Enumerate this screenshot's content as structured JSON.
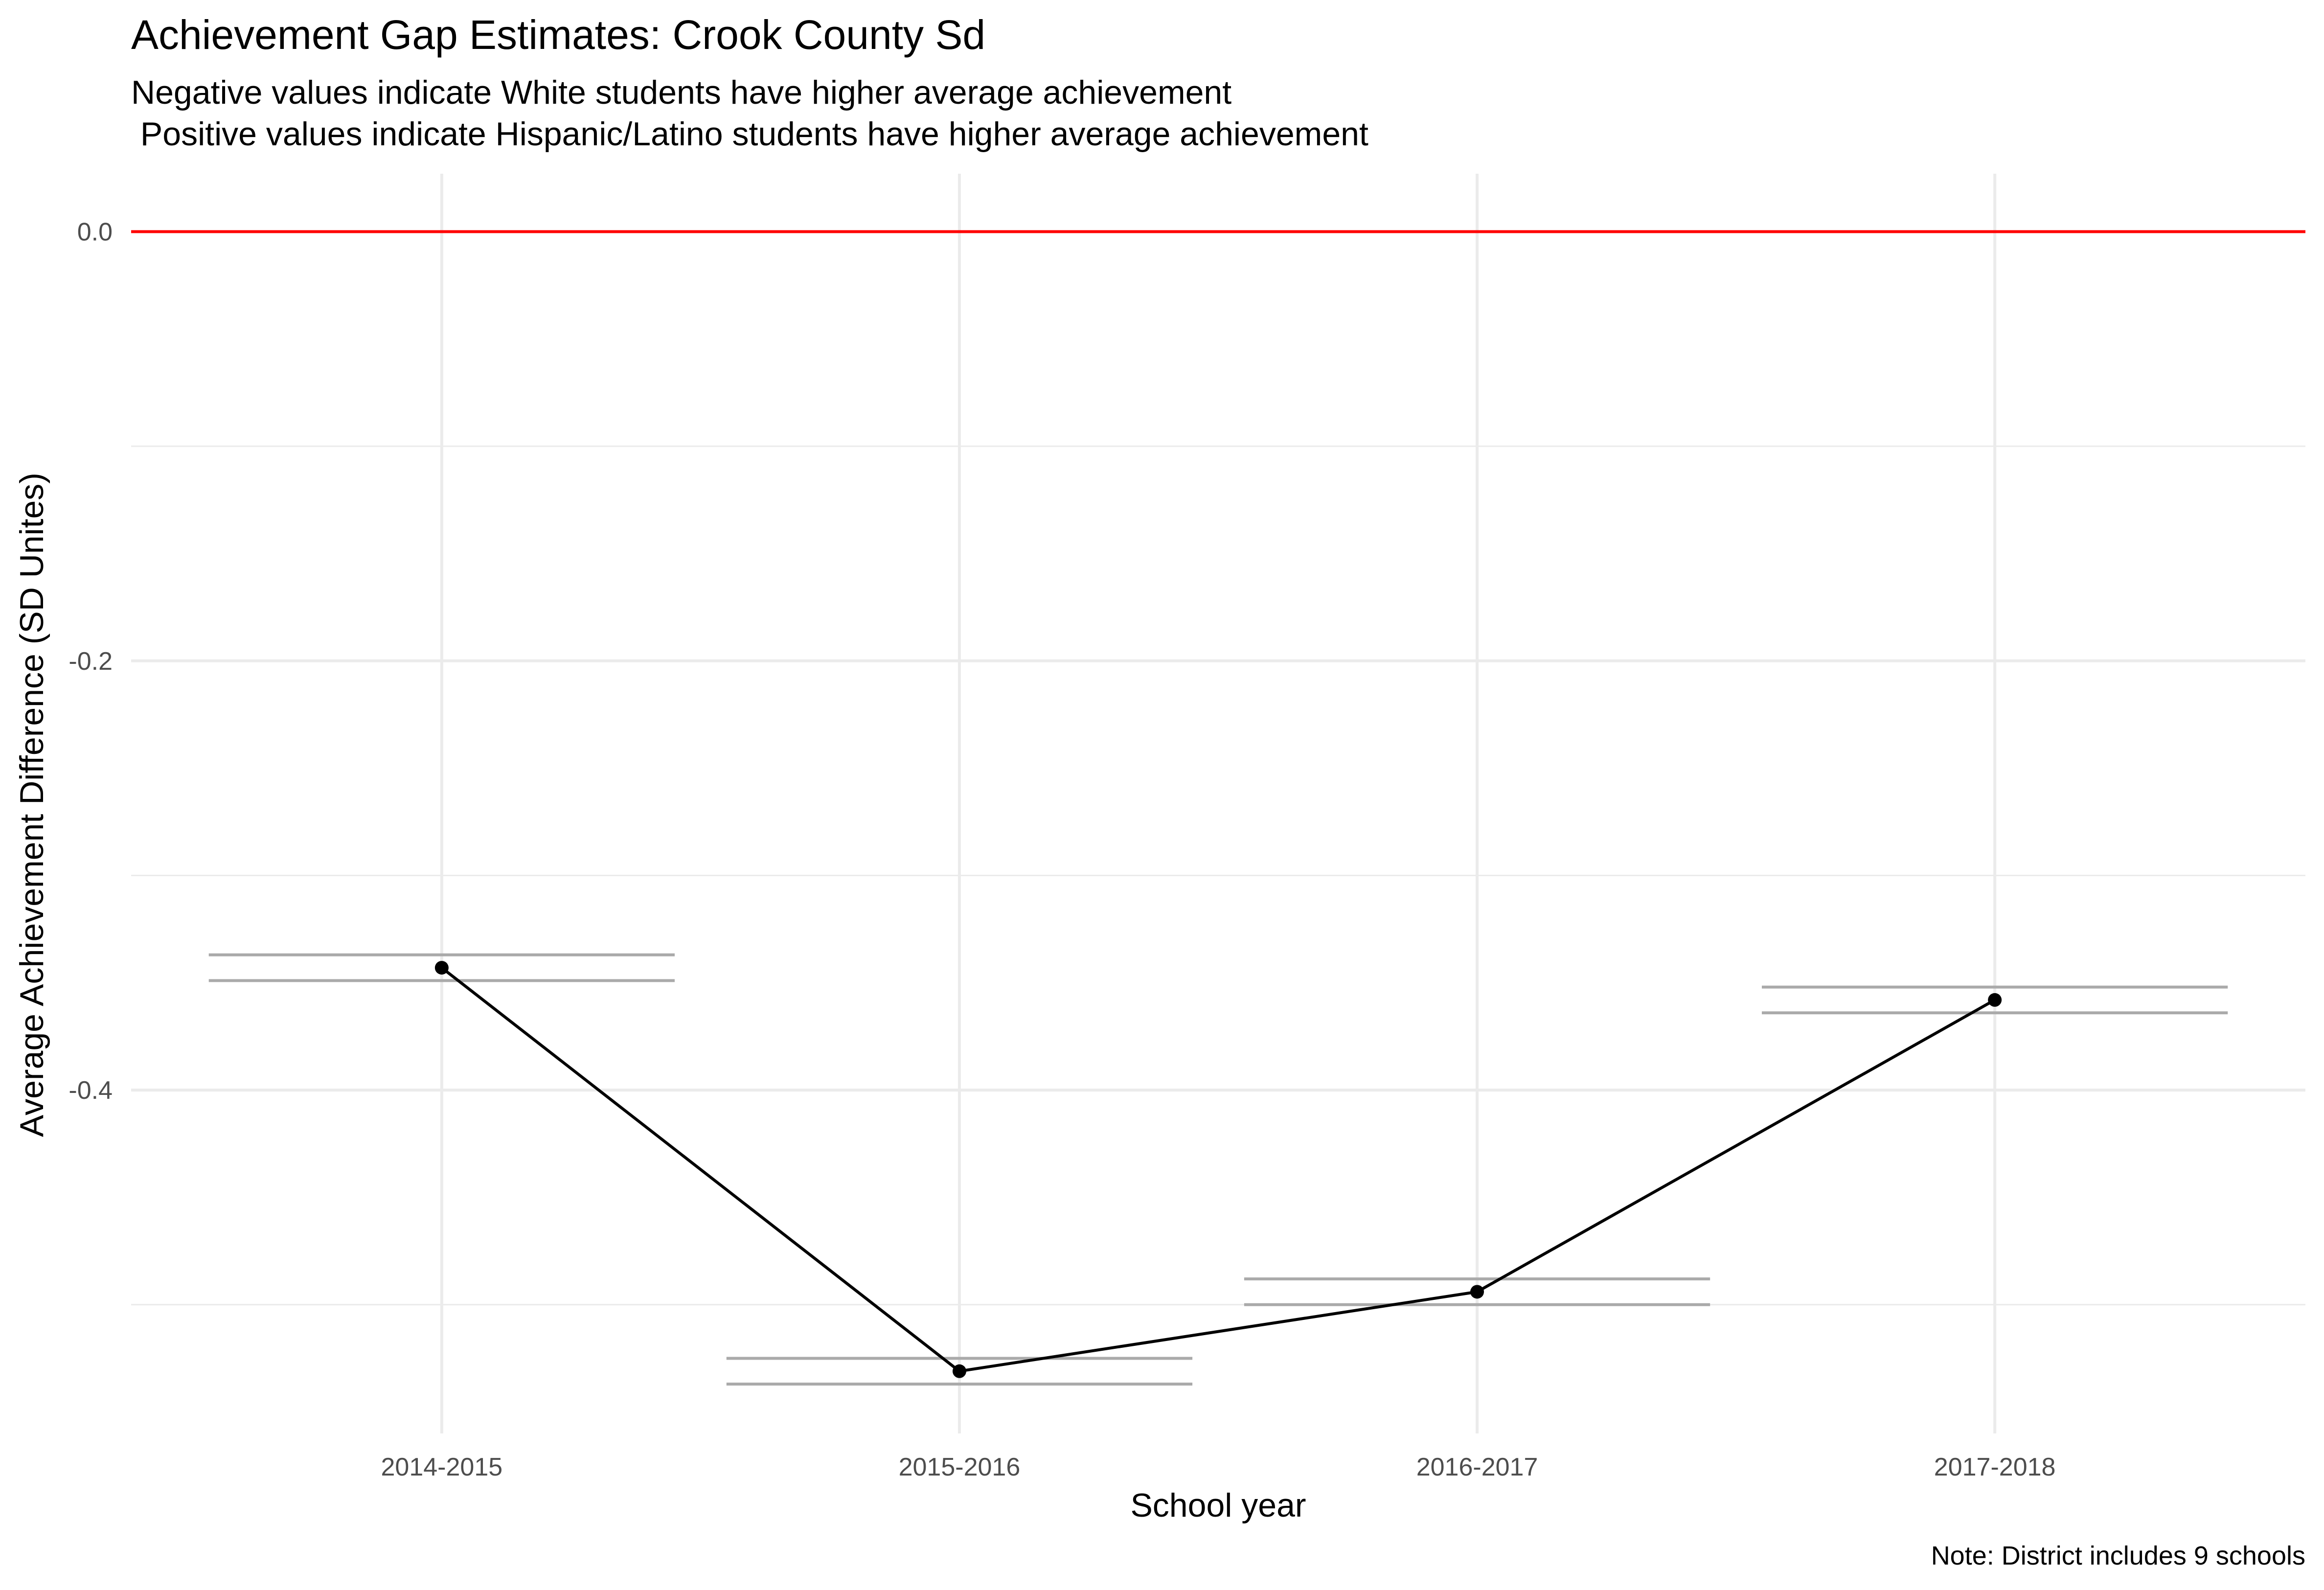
{
  "chart_data": {
    "type": "line",
    "title": "Achievement Gap Estimates: Crook County Sd",
    "subtitle": [
      "Negative values indicate White students have higher average achievement",
      " Positive values indicate Hispanic/Latino students have higher average achievement"
    ],
    "xlabel": "School year",
    "ylabel": "Average Achievement Difference (SD Unites)",
    "caption": "Note: District includes 9 schools",
    "categories": [
      "2014-2015",
      "2015-2016",
      "2016-2017",
      "2017-2018"
    ],
    "values": [
      -0.343,
      -0.531,
      -0.494,
      -0.358
    ],
    "interval_upper": [
      -0.337,
      -0.525,
      -0.488,
      -0.352
    ],
    "interval_lower": [
      -0.349,
      -0.537,
      -0.5,
      -0.364
    ],
    "ylim": [
      -0.56,
      0.027
    ],
    "y_ticks": [
      0.0,
      -0.2,
      -0.4
    ],
    "y_tick_labels": [
      "0.0",
      "-0.2",
      "-0.4"
    ],
    "y_minor_grid": [
      -0.1,
      -0.3,
      -0.5
    ],
    "reference_line": 0.0,
    "grid": true,
    "legend": "none",
    "colors": {
      "line": "#000000",
      "point": "#000000",
      "interval": "#aaaaaa",
      "reference": "#ff0000",
      "grid": "#ebebeb"
    }
  }
}
